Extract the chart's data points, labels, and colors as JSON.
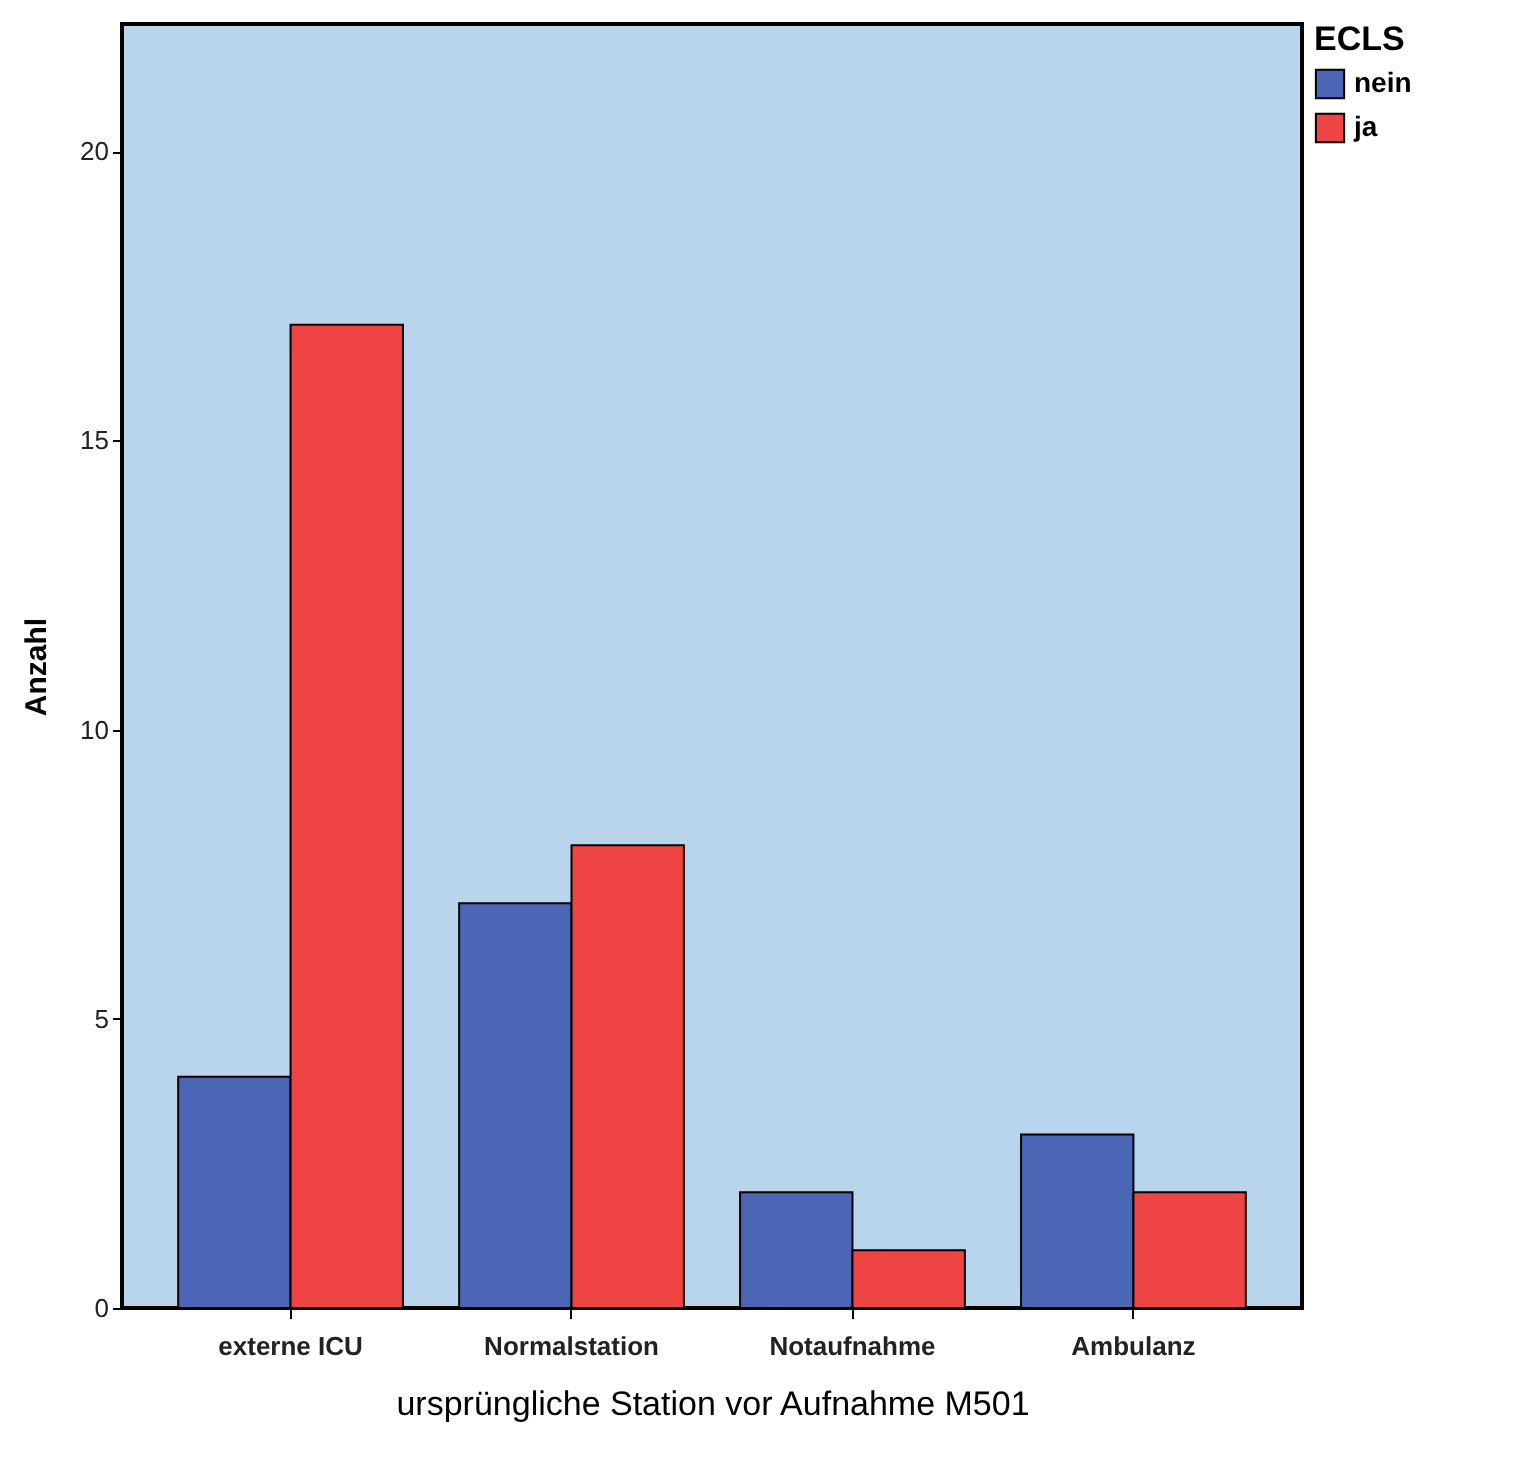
{
  "chart_data": {
    "type": "bar",
    "xlabel": "ursprüngliche Station vor Aufnahme M501",
    "ylabel": "Anzahl",
    "legend_title": "ECLS",
    "categories": [
      "externe ICU",
      "Normalstation",
      "Notaufnahme",
      "Ambulanz"
    ],
    "series": [
      {
        "name": "nein",
        "color": "#4a66b5",
        "values": [
          4,
          7,
          2,
          3
        ]
      },
      {
        "name": "ja",
        "color": "#ee4444",
        "values": [
          17,
          8,
          1,
          2
        ]
      }
    ],
    "ylim": [
      0,
      22.2
    ],
    "yticks": [
      0,
      5,
      10,
      15,
      20
    ],
    "grid": false,
    "legend": "top right"
  }
}
